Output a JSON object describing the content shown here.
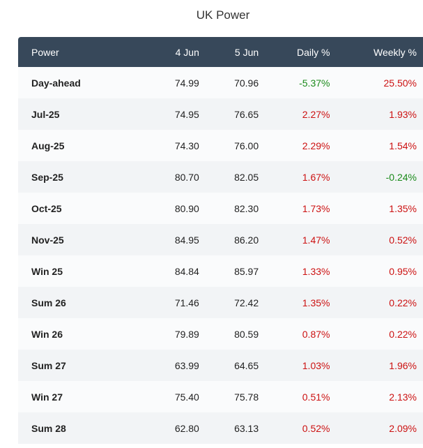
{
  "title": "UK Power",
  "columns": [
    "Power",
    "4 Jun",
    "5 Jun",
    "Daily %",
    "Weekly %"
  ],
  "colors": {
    "header_bg": "#37485a",
    "positive": "#cc1111",
    "negative": "#1a8a1a"
  },
  "rows": [
    {
      "name": "Day-ahead",
      "d1": "74.99",
      "d2": "70.96",
      "daily": "-5.37%",
      "weekly": "25.50%"
    },
    {
      "name": "Jul-25",
      "d1": "74.95",
      "d2": "76.65",
      "daily": "2.27%",
      "weekly": "1.93%"
    },
    {
      "name": "Aug-25",
      "d1": "74.30",
      "d2": "76.00",
      "daily": "2.29%",
      "weekly": "1.54%"
    },
    {
      "name": "Sep-25",
      "d1": "80.70",
      "d2": "82.05",
      "daily": "1.67%",
      "weekly": "-0.24%"
    },
    {
      "name": "Oct-25",
      "d1": "80.90",
      "d2": "82.30",
      "daily": "1.73%",
      "weekly": "1.35%"
    },
    {
      "name": "Nov-25",
      "d1": "84.95",
      "d2": "86.20",
      "daily": "1.47%",
      "weekly": "0.52%"
    },
    {
      "name": "Win 25",
      "d1": "84.84",
      "d2": "85.97",
      "daily": "1.33%",
      "weekly": "0.95%"
    },
    {
      "name": "Sum 26",
      "d1": "71.46",
      "d2": "72.42",
      "daily": "1.35%",
      "weekly": "0.22%"
    },
    {
      "name": "Win 26",
      "d1": "79.89",
      "d2": "80.59",
      "daily": "0.87%",
      "weekly": "0.22%"
    },
    {
      "name": "Sum 27",
      "d1": "63.99",
      "d2": "64.65",
      "daily": "1.03%",
      "weekly": "1.96%"
    },
    {
      "name": "Win 27",
      "d1": "75.40",
      "d2": "75.78",
      "daily": "0.51%",
      "weekly": "2.13%"
    },
    {
      "name": "Sum 28",
      "d1": "62.80",
      "d2": "63.13",
      "daily": "0.52%",
      "weekly": "2.09%"
    }
  ]
}
